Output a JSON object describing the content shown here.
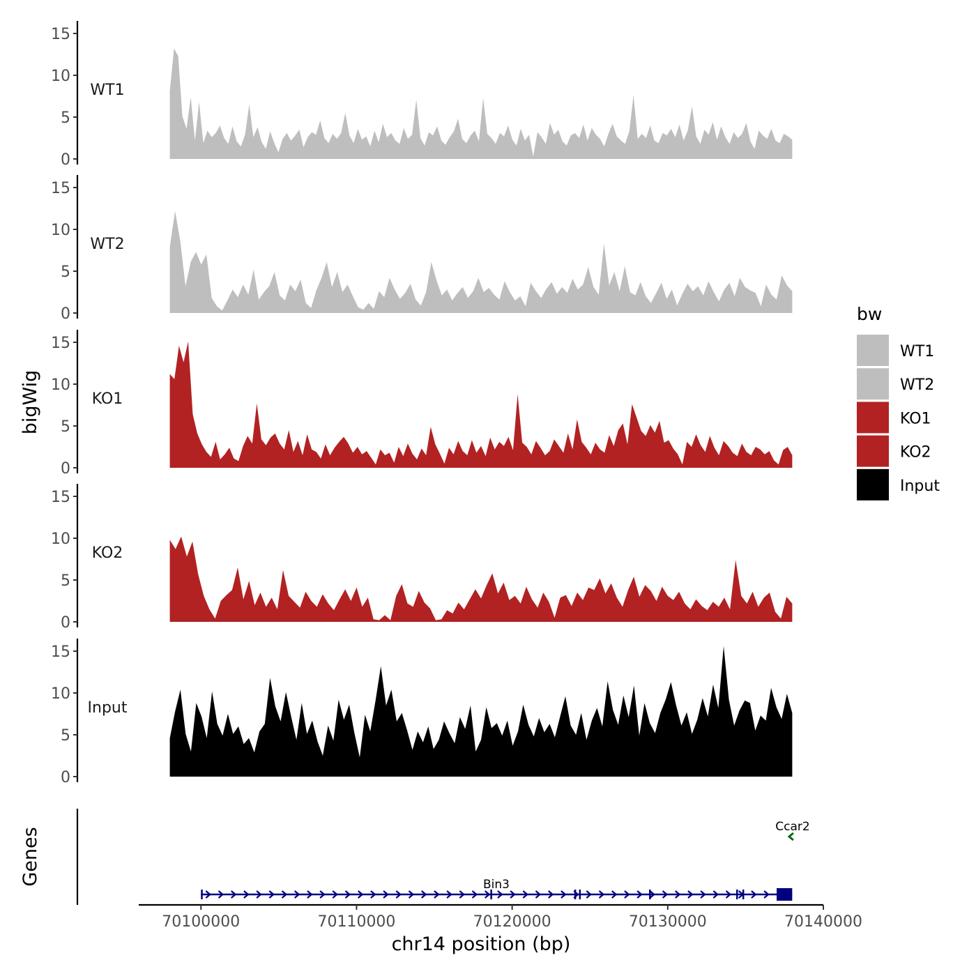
{
  "chart_data": {
    "type": "area",
    "title": "",
    "ylabel": "bigWig",
    "genes_label": "Genes",
    "xlabel": "chr14 position (bp)",
    "region": [
      70098000,
      70138000
    ],
    "xlim": [
      70096000,
      70140000
    ],
    "x_ticks": [
      70100000,
      70110000,
      70120000,
      70130000,
      70140000
    ],
    "x_tick_labels": [
      "70100000",
      "70110000",
      "70120000",
      "70130000",
      "70140000"
    ],
    "ylim": [
      0,
      16
    ],
    "y_ticks": [
      0,
      5,
      10,
      15
    ],
    "y_tick_labels": [
      "0",
      "5",
      "10",
      "15"
    ],
    "legend": {
      "title": "bw",
      "position": "right",
      "entries": [
        {
          "label": "WT1",
          "color": "#bebebe"
        },
        {
          "label": "WT2",
          "color": "#bebebe"
        },
        {
          "label": "KO1",
          "color": "#b22222"
        },
        {
          "label": "KO2",
          "color": "#b22222"
        },
        {
          "label": "Input",
          "color": "#000000"
        }
      ]
    },
    "series": [
      {
        "name": "WT1",
        "color": "#bebebe",
        "values": [
          8.1,
          13.2,
          12.3,
          5.1,
          3.6,
          7.4,
          2.2,
          6.8,
          1.9,
          3.4,
          2.6,
          3.1,
          4.0,
          2.5,
          1.8,
          3.9,
          2.1,
          1.5,
          2.9,
          6.5,
          2.6,
          3.8,
          2.0,
          1.2,
          3.3,
          1.9,
          0.8,
          2.4,
          3.1,
          2.2,
          2.8,
          3.5,
          1.4,
          2.6,
          3.2,
          2.9,
          4.6,
          2.5,
          1.9,
          3.0,
          2.4,
          3.1,
          5.5,
          2.8,
          1.9,
          3.6,
          2.3,
          2.7,
          1.5,
          3.4,
          2.0,
          4.2,
          2.6,
          3.1,
          2.2,
          1.8,
          3.7,
          2.4,
          2.9,
          7.1,
          2.5,
          1.6,
          3.2,
          2.8,
          3.9,
          2.2,
          1.7,
          2.6,
          3.3,
          4.8,
          2.4,
          1.9,
          2.8,
          3.4,
          2.1,
          7.3,
          3.0,
          2.5,
          1.8,
          3.1,
          2.7,
          4.0,
          2.3,
          1.6,
          3.6,
          2.2,
          2.9,
          0.3,
          3.2,
          2.6,
          1.8,
          4.3,
          2.9,
          3.5,
          2.1,
          1.6,
          2.8,
          3.1,
          2.5,
          4.1,
          2.2,
          3.7,
          2.9,
          2.4,
          1.5,
          3.0,
          4.2,
          2.7,
          2.2,
          1.8,
          3.3,
          7.6,
          2.4,
          3.0,
          2.5,
          4.0,
          2.2,
          1.9,
          3.1,
          2.8,
          3.6,
          2.6,
          4.1,
          2.2,
          3.4,
          6.3,
          2.7,
          1.8,
          3.5,
          2.9,
          4.4,
          2.3,
          3.9,
          2.6,
          1.8,
          3.2,
          2.5,
          3.0,
          4.3,
          2.1,
          1.2,
          3.4,
          2.8,
          2.4,
          3.6,
          2.2,
          1.9,
          3.0,
          2.7,
          2.3
        ]
      },
      {
        "name": "WT2",
        "color": "#bebebe",
        "values": [
          7.9,
          12.2,
          8.6,
          3.2,
          6.1,
          7.3,
          5.8,
          7.0,
          1.8,
          0.8,
          0.3,
          1.5,
          2.8,
          1.9,
          3.4,
          2.2,
          5.2,
          1.6,
          2.5,
          3.2,
          4.9,
          2.1,
          1.5,
          3.4,
          2.6,
          4.0,
          1.2,
          0.6,
          2.7,
          4.2,
          6.1,
          3.1,
          4.9,
          2.5,
          3.4,
          2.0,
          0.7,
          0.4,
          1.2,
          0.5,
          2.6,
          1.9,
          4.2,
          2.8,
          1.7,
          2.4,
          3.5,
          1.6,
          0.9,
          2.5,
          6.1,
          3.9,
          2.1,
          2.8,
          1.5,
          2.4,
          3.1,
          1.8,
          2.6,
          4.2,
          2.5,
          3.0,
          2.2,
          1.6,
          3.8,
          2.5,
          1.5,
          2.0,
          0.8,
          3.6,
          2.6,
          1.8,
          2.9,
          3.7,
          2.3,
          3.1,
          2.4,
          4.1,
          2.8,
          3.4,
          5.5,
          3.1,
          2.2,
          8.3,
          3.3,
          4.9,
          2.6,
          5.6,
          2.5,
          2.1,
          3.7,
          2.0,
          1.2,
          2.4,
          3.6,
          1.7,
          2.8,
          0.9,
          2.3,
          3.5,
          2.6,
          3.2,
          2.1,
          3.8,
          2.5,
          1.4,
          2.8,
          3.6,
          2.0,
          4.2,
          3.1,
          2.7,
          2.4,
          0.8,
          3.4,
          2.2,
          1.6,
          4.5,
          3.3,
          2.6
        ]
      },
      {
        "name": "KO1",
        "color": "#b22222",
        "values": [
          11.2,
          10.6,
          14.6,
          12.6,
          15.1,
          6.4,
          4.1,
          2.8,
          1.9,
          1.3,
          3.1,
          1.0,
          1.6,
          2.4,
          1.1,
          0.8,
          2.6,
          3.8,
          2.9,
          7.7,
          3.4,
          2.7,
          3.6,
          4.1,
          2.9,
          2.2,
          4.5,
          1.9,
          3.2,
          1.5,
          4.0,
          2.2,
          1.9,
          1.1,
          2.8,
          1.5,
          2.4,
          3.1,
          3.7,
          2.9,
          1.8,
          2.5,
          1.6,
          2.0,
          1.2,
          0.4,
          2.2,
          1.5,
          1.8,
          0.6,
          2.5,
          1.4,
          2.9,
          1.7,
          1.0,
          2.3,
          1.5,
          4.9,
          2.8,
          1.7,
          0.5,
          2.4,
          1.6,
          3.2,
          2.0,
          1.5,
          3.3,
          1.8,
          2.6,
          1.4,
          3.6,
          2.2,
          3.1,
          2.6,
          3.7,
          2.1,
          8.8,
          3.0,
          2.5,
          1.6,
          3.2,
          2.4,
          1.5,
          2.0,
          3.4,
          2.6,
          1.8,
          4.1,
          2.2,
          5.8,
          3.1,
          2.4,
          1.6,
          3.0,
          2.2,
          1.8,
          3.9,
          2.6,
          4.5,
          5.3,
          2.8,
          7.6,
          6.0,
          4.4,
          3.8,
          5.1,
          4.2,
          5.6,
          3.0,
          3.3,
          2.3,
          1.6,
          0.4,
          3.1,
          2.5,
          4.0,
          2.7,
          1.9,
          3.8,
          2.4,
          1.5,
          3.2,
          2.6,
          1.8,
          1.4,
          2.9,
          1.9,
          1.5,
          2.5,
          2.2,
          1.6,
          2.0,
          0.9,
          0.4,
          2.1,
          2.5,
          1.5
        ]
      },
      {
        "name": "KO2",
        "color": "#b22222",
        "values": [
          9.8,
          8.7,
          10.2,
          7.8,
          9.6,
          5.7,
          3.1,
          1.5,
          0.4,
          2.5,
          3.2,
          3.8,
          6.5,
          2.7,
          4.9,
          2.0,
          3.5,
          1.8,
          2.9,
          1.5,
          6.2,
          3.1,
          2.4,
          1.7,
          3.6,
          2.5,
          1.8,
          3.3,
          2.2,
          1.4,
          2.7,
          3.9,
          2.5,
          4.1,
          1.8,
          2.9,
          0.3,
          0.2,
          0.8,
          0.2,
          3.1,
          4.5,
          2.2,
          1.8,
          3.7,
          2.3,
          1.6,
          0.2,
          0.3,
          1.4,
          1.0,
          2.3,
          1.5,
          2.7,
          3.9,
          2.8,
          4.4,
          5.8,
          3.4,
          4.7,
          2.6,
          3.1,
          2.2,
          4.2,
          2.7,
          1.7,
          3.5,
          2.4,
          0.5,
          2.9,
          3.2,
          1.9,
          3.5,
          2.6,
          4.1,
          3.8,
          5.2,
          3.4,
          4.6,
          2.9,
          1.8,
          3.8,
          5.4,
          3.0,
          4.4,
          3.7,
          2.5,
          4.2,
          3.1,
          2.6,
          3.6,
          2.2,
          1.5,
          2.7,
          1.9,
          1.4,
          2.4,
          1.8,
          2.9,
          1.5,
          7.4,
          3.1,
          2.2,
          3.6,
          1.8,
          2.9,
          3.5,
          1.2,
          0.4,
          3.0,
          2.2
        ]
      },
      {
        "name": "Input",
        "color": "#000000",
        "values": [
          4.6,
          7.8,
          10.4,
          5.1,
          3.0,
          8.8,
          7.2,
          4.6,
          10.2,
          6.3,
          4.9,
          7.5,
          5.1,
          6.0,
          3.9,
          4.6,
          2.9,
          5.4,
          6.3,
          11.8,
          8.4,
          6.6,
          10.1,
          7.2,
          4.4,
          8.8,
          5.1,
          6.7,
          4.2,
          2.5,
          6.1,
          4.3,
          9.2,
          6.8,
          8.6,
          5.2,
          2.3,
          7.4,
          5.4,
          9.1,
          13.2,
          8.5,
          10.4,
          6.6,
          7.6,
          5.5,
          3.2,
          5.4,
          4.1,
          6.0,
          3.3,
          4.4,
          6.6,
          5.2,
          4.0,
          7.1,
          5.7,
          8.5,
          3.0,
          4.4,
          8.3,
          5.8,
          6.4,
          4.9,
          6.7,
          3.7,
          5.4,
          8.6,
          6.2,
          4.8,
          7.0,
          5.3,
          6.3,
          4.7,
          7.2,
          9.6,
          6.1,
          5.0,
          7.6,
          4.4,
          6.7,
          8.2,
          6.0,
          11.4,
          8.0,
          6.2,
          9.7,
          7.1,
          10.9,
          4.9,
          8.8,
          6.4,
          5.2,
          7.6,
          9.2,
          11.3,
          8.5,
          6.1,
          7.7,
          5.1,
          6.8,
          9.4,
          7.2,
          11.0,
          8.2,
          15.6,
          9.2,
          6.1,
          7.9,
          9.1,
          8.8,
          5.5,
          7.3,
          6.7,
          10.6,
          8.3,
          6.9,
          9.9,
          7.6
        ]
      }
    ],
    "genes": [
      {
        "name": "Bin3",
        "color": "#000080",
        "strand": "+",
        "start": 70100000,
        "end": 70138000,
        "exons": [
          [
            70100000,
            70100080
          ],
          [
            70118600,
            70118680
          ],
          [
            70124000,
            70124100
          ],
          [
            70124300,
            70124380
          ],
          [
            70128800,
            70128900
          ],
          [
            70134400,
            70134480
          ],
          [
            70134800,
            70134880
          ],
          [
            70137000,
            70138000
          ]
        ]
      },
      {
        "name": "Ccar2",
        "color": "#006400",
        "strand": "-",
        "start": 70137800,
        "end": 70138100,
        "exons": []
      }
    ]
  }
}
